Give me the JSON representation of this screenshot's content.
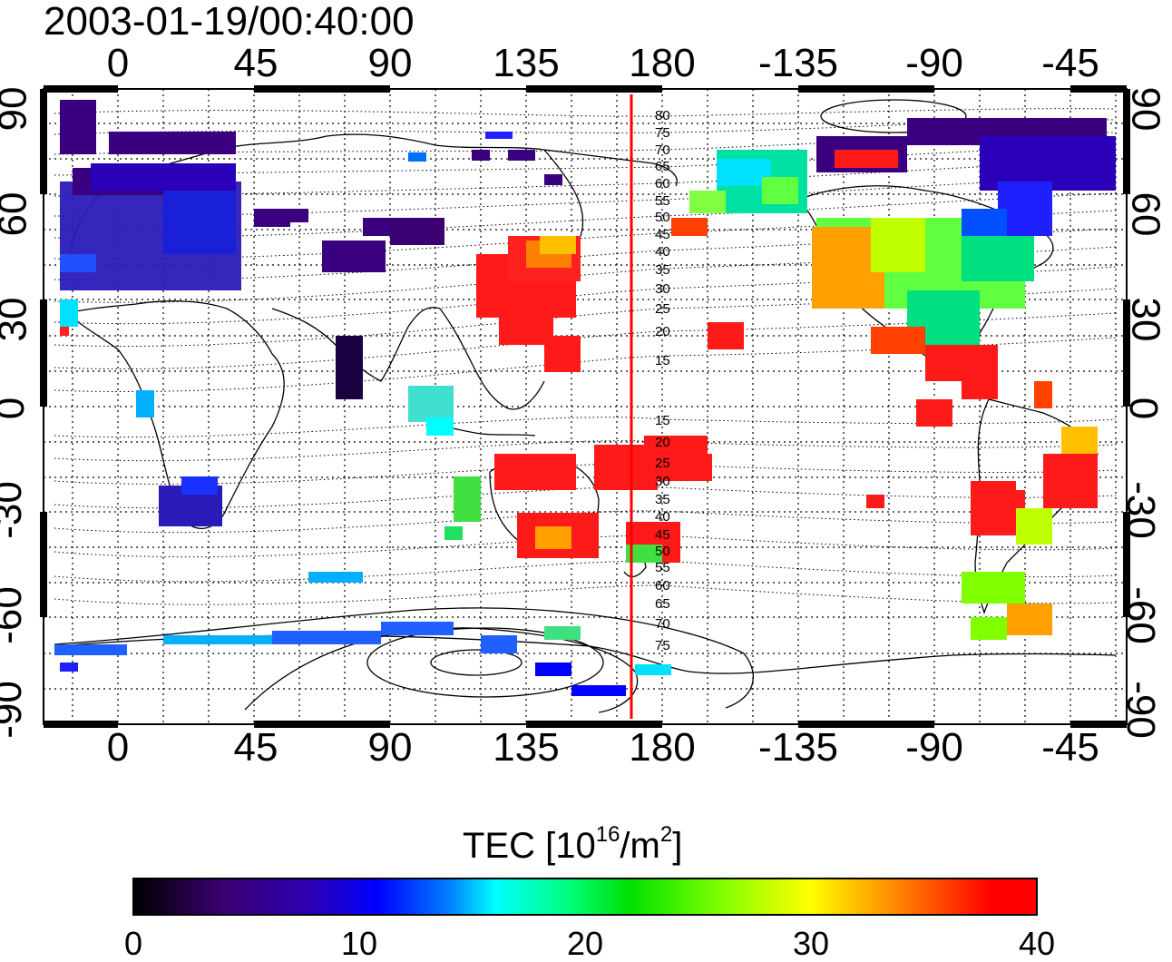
{
  "map": {
    "title": "2003-01-19/00:40:00",
    "top_lon_labels": [
      "0",
      "45",
      "90",
      "135",
      "180",
      "-135",
      "-90",
      "-45"
    ],
    "bottom_lon_labels": [
      "0",
      "45",
      "90",
      "135",
      "180",
      "-135",
      "-90",
      "-45"
    ],
    "lat_labels": [
      "90",
      "60",
      "30",
      "0",
      "-30",
      "-60",
      "-90"
    ],
    "contour_labels_north": [
      "80",
      "75",
      "70",
      "65",
      "60",
      "55",
      "50",
      "45",
      "40",
      "35",
      "30",
      "25",
      "20",
      "15"
    ],
    "contour_labels_south": [
      "15",
      "20",
      "25",
      "30",
      "35",
      "40",
      "45",
      "50",
      "55",
      "60",
      "65",
      "70",
      "75"
    ],
    "terminator_line_color": "#ff0000",
    "terminator_longitude": 170
  },
  "colorbar": {
    "label_main": "TEC  [10",
    "label_exp1": "16",
    "label_mid": "/m",
    "label_exp2": "2",
    "label_end": "]",
    "min": 0,
    "max": 40,
    "tick_labels": [
      "0",
      "10",
      "20",
      "30",
      "40"
    ],
    "colors": [
      "#000000",
      "#3b0072",
      "#0000ff",
      "#00ffff",
      "#00e000",
      "#ffff00",
      "#ff8000",
      "#ff0000"
    ]
  }
}
